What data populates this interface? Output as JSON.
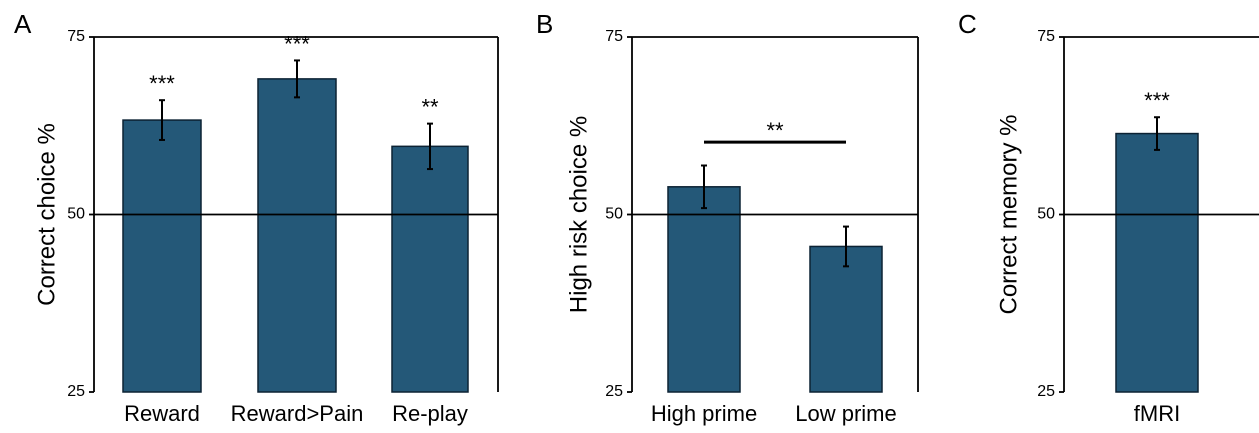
{
  "colors": {
    "bar": "#245878",
    "bar_edge": "#0c2233",
    "axis": "#000000"
  },
  "chart_data": [
    {
      "panel_label": "A",
      "type": "bar",
      "ylabel": "Correct choice %",
      "ylim": [
        25,
        75
      ],
      "yticks": [
        25,
        50,
        75
      ],
      "reference_line": 50,
      "categories": [
        "Reward",
        "Reward>Pain",
        "Re-play"
      ],
      "values": [
        63.3,
        69.1,
        59.6
      ],
      "errors": [
        2.8,
        2.6,
        3.2
      ],
      "significance": [
        "***",
        "***",
        "**"
      ]
    },
    {
      "panel_label": "B",
      "type": "bar",
      "ylabel": "High risk choice %",
      "ylim": [
        25,
        75
      ],
      "yticks": [
        25,
        50,
        75
      ],
      "reference_line": 50,
      "categories": [
        "High prime",
        "Low prime"
      ],
      "values": [
        53.9,
        45.5
      ],
      "errors": [
        3.0,
        2.8
      ],
      "comparison": {
        "between": [
          0,
          1
        ],
        "label": "**",
        "y": 60.2
      }
    },
    {
      "panel_label": "C",
      "type": "bar",
      "ylabel": "Correct memory %",
      "ylim": [
        25,
        75
      ],
      "yticks": [
        25,
        50,
        75
      ],
      "reference_line": 50,
      "categories": [
        "fMRI"
      ],
      "values": [
        61.4
      ],
      "errors": [
        2.3
      ],
      "significance": [
        "***"
      ]
    }
  ]
}
